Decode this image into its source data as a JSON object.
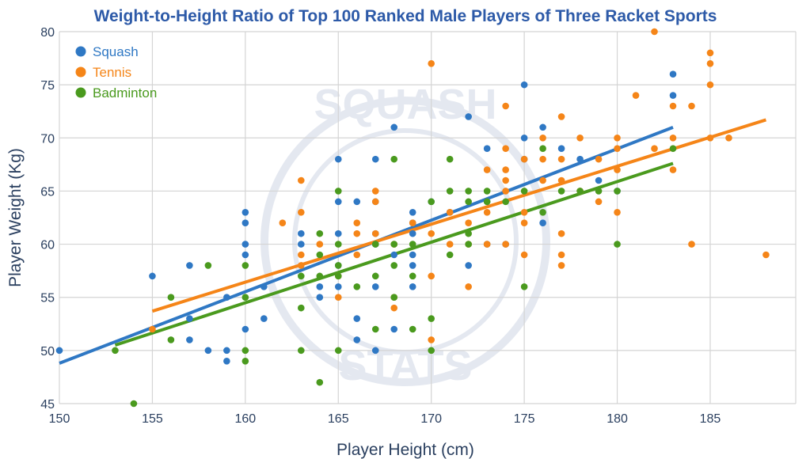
{
  "chart_data": {
    "type": "scatter",
    "title": "Weight-to-Height Ratio of Top 100 Ranked Male Players of Three Racket Sports",
    "xlabel": "Player Height (cm)",
    "ylabel": "Player Weight (Kg)",
    "xlim": [
      150,
      189.6
    ],
    "ylim": [
      45,
      80
    ],
    "xticks": [
      150,
      155,
      160,
      165,
      170,
      175,
      180,
      185
    ],
    "yticks": [
      45,
      50,
      55,
      60,
      65,
      70,
      75,
      80
    ],
    "grid": true,
    "legend_position": "top-left",
    "watermark": [
      "SQUASH",
      "STATS"
    ],
    "series": [
      {
        "name": "Squash",
        "color": "#2f78c4",
        "points": [
          [
            150,
            50
          ],
          [
            155,
            57
          ],
          [
            157,
            58
          ],
          [
            157,
            53
          ],
          [
            157,
            51
          ],
          [
            158,
            50
          ],
          [
            159,
            55
          ],
          [
            159,
            50
          ],
          [
            159,
            49
          ],
          [
            160,
            63
          ],
          [
            160,
            62
          ],
          [
            160,
            60
          ],
          [
            160,
            59
          ],
          [
            160,
            52
          ],
          [
            161,
            56
          ],
          [
            161,
            53
          ],
          [
            163,
            61
          ],
          [
            163,
            60
          ],
          [
            164,
            56
          ],
          [
            164,
            55
          ],
          [
            165,
            68
          ],
          [
            165,
            64
          ],
          [
            165,
            61
          ],
          [
            165,
            58
          ],
          [
            165,
            56
          ],
          [
            166,
            64
          ],
          [
            166,
            53
          ],
          [
            166,
            51
          ],
          [
            167,
            68
          ],
          [
            167,
            64
          ],
          [
            167,
            61
          ],
          [
            167,
            60
          ],
          [
            167,
            56
          ],
          [
            167,
            50
          ],
          [
            168,
            71
          ],
          [
            168,
            59
          ],
          [
            168,
            52
          ],
          [
            169,
            63
          ],
          [
            169,
            62
          ],
          [
            169,
            61
          ],
          [
            169,
            59
          ],
          [
            169,
            58
          ],
          [
            169,
            56
          ],
          [
            170,
            64
          ],
          [
            171,
            63
          ],
          [
            172,
            72
          ],
          [
            172,
            58
          ],
          [
            173,
            69
          ],
          [
            173,
            64
          ],
          [
            173,
            60
          ],
          [
            174,
            60
          ],
          [
            175,
            75
          ],
          [
            175,
            70
          ],
          [
            175,
            68
          ],
          [
            176,
            71
          ],
          [
            176,
            62
          ],
          [
            177,
            69
          ],
          [
            178,
            68
          ],
          [
            179,
            66
          ],
          [
            180,
            65
          ],
          [
            183,
            76
          ],
          [
            183,
            74
          ]
        ],
        "trend": [
          [
            150,
            48.8
          ],
          [
            183,
            71.0
          ]
        ]
      },
      {
        "name": "Tennis",
        "color": "#f58518",
        "points": [
          [
            155,
            52
          ],
          [
            162,
            62
          ],
          [
            163,
            66
          ],
          [
            163,
            63
          ],
          [
            163,
            59
          ],
          [
            163,
            58
          ],
          [
            164,
            60
          ],
          [
            165,
            57
          ],
          [
            165,
            55
          ],
          [
            166,
            62
          ],
          [
            166,
            61
          ],
          [
            166,
            59
          ],
          [
            167,
            65
          ],
          [
            167,
            64
          ],
          [
            167,
            61
          ],
          [
            168,
            60
          ],
          [
            168,
            55
          ],
          [
            168,
            54
          ],
          [
            169,
            62
          ],
          [
            170,
            77
          ],
          [
            170,
            61
          ],
          [
            170,
            57
          ],
          [
            170,
            51
          ],
          [
            171,
            63
          ],
          [
            171,
            60
          ],
          [
            172,
            62
          ],
          [
            172,
            60
          ],
          [
            172,
            56
          ],
          [
            173,
            67
          ],
          [
            173,
            63
          ],
          [
            173,
            60
          ],
          [
            174,
            73
          ],
          [
            174,
            69
          ],
          [
            174,
            67
          ],
          [
            174,
            66
          ],
          [
            174,
            65
          ],
          [
            174,
            60
          ],
          [
            175,
            68
          ],
          [
            175,
            63
          ],
          [
            175,
            62
          ],
          [
            175,
            59
          ],
          [
            176,
            70
          ],
          [
            176,
            68
          ],
          [
            176,
            66
          ],
          [
            177,
            72
          ],
          [
            177,
            68
          ],
          [
            177,
            66
          ],
          [
            177,
            61
          ],
          [
            177,
            59
          ],
          [
            177,
            58
          ],
          [
            178,
            70
          ],
          [
            178,
            65
          ],
          [
            179,
            68
          ],
          [
            179,
            64
          ],
          [
            180,
            70
          ],
          [
            180,
            69
          ],
          [
            180,
            67
          ],
          [
            180,
            63
          ],
          [
            181,
            74
          ],
          [
            182,
            80
          ],
          [
            182,
            69
          ],
          [
            183,
            73
          ],
          [
            183,
            70
          ],
          [
            183,
            67
          ],
          [
            184,
            73
          ],
          [
            184,
            60
          ],
          [
            185,
            78
          ],
          [
            185,
            77
          ],
          [
            185,
            75
          ],
          [
            185,
            70
          ],
          [
            186,
            70
          ],
          [
            188,
            59
          ]
        ],
        "trend": [
          [
            155,
            53.7
          ],
          [
            188,
            71.7
          ]
        ]
      },
      {
        "name": "Badminton",
        "color": "#4a9a1e",
        "points": [
          [
            153,
            50
          ],
          [
            154,
            45
          ],
          [
            156,
            55
          ],
          [
            156,
            51
          ],
          [
            158,
            58
          ],
          [
            160,
            58
          ],
          [
            160,
            55
          ],
          [
            160,
            50
          ],
          [
            160,
            49
          ],
          [
            163,
            57
          ],
          [
            163,
            54
          ],
          [
            163,
            50
          ],
          [
            164,
            61
          ],
          [
            164,
            59
          ],
          [
            164,
            57
          ],
          [
            164,
            47
          ],
          [
            165,
            65
          ],
          [
            165,
            60
          ],
          [
            165,
            58
          ],
          [
            165,
            57
          ],
          [
            165,
            50
          ],
          [
            166,
            56
          ],
          [
            167,
            60
          ],
          [
            167,
            57
          ],
          [
            167,
            52
          ],
          [
            168,
            68
          ],
          [
            168,
            60
          ],
          [
            168,
            58
          ],
          [
            168,
            55
          ],
          [
            169,
            60
          ],
          [
            169,
            57
          ],
          [
            169,
            52
          ],
          [
            170,
            64
          ],
          [
            170,
            53
          ],
          [
            170,
            50
          ],
          [
            171,
            68
          ],
          [
            171,
            65
          ],
          [
            171,
            59
          ],
          [
            172,
            65
          ],
          [
            172,
            64
          ],
          [
            172,
            61
          ],
          [
            172,
            60
          ],
          [
            173,
            65
          ],
          [
            173,
            64
          ],
          [
            174,
            64
          ],
          [
            175,
            65
          ],
          [
            175,
            56
          ],
          [
            176,
            69
          ],
          [
            176,
            63
          ],
          [
            177,
            65
          ],
          [
            178,
            65
          ],
          [
            179,
            65
          ],
          [
            180,
            65
          ],
          [
            180,
            60
          ],
          [
            183,
            69
          ]
        ],
        "trend": [
          [
            153,
            50.5
          ],
          [
            183,
            67.6
          ]
        ]
      }
    ]
  }
}
